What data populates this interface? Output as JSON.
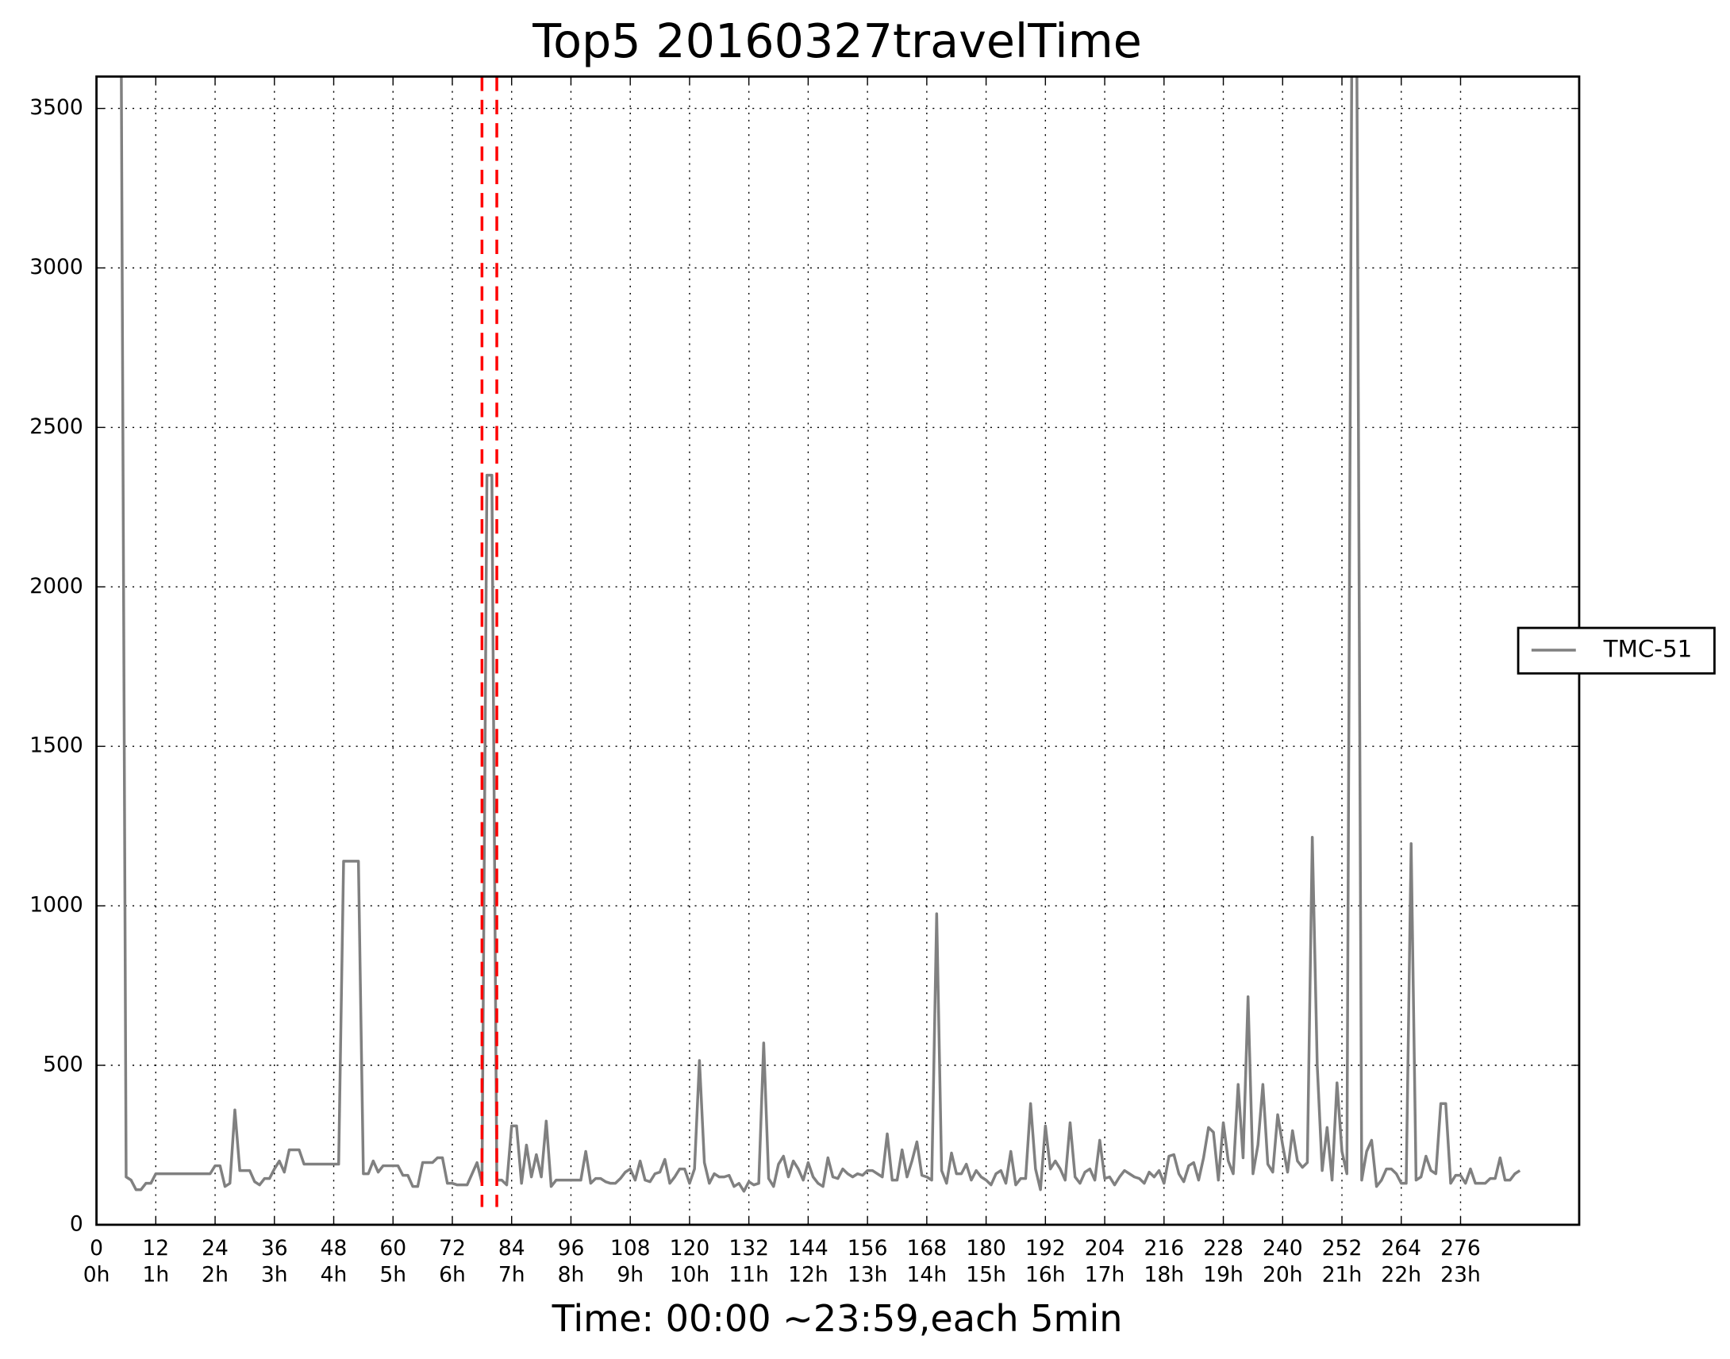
{
  "chart_data": {
    "type": "line",
    "title": "Top5 20160327travelTime",
    "x_label": "Time: 00:00 ~23:59,each 5min",
    "xlim": [
      0,
      300
    ],
    "xticks": [
      0,
      12,
      24,
      36,
      48,
      60,
      72,
      84,
      96,
      108,
      120,
      132,
      144,
      156,
      168,
      180,
      192,
      204,
      216,
      228,
      240,
      252,
      264,
      276
    ],
    "xtick_hours": [
      "0h",
      "1h",
      "2h",
      "3h",
      "4h",
      "5h",
      "6h",
      "7h",
      "8h",
      "9h",
      "10h",
      "11h",
      "12h",
      "13h",
      "14h",
      "15h",
      "16h",
      "17h",
      "18h",
      "19h",
      "20h",
      "21h",
      "22h",
      "23h"
    ],
    "ylim": [
      0,
      3600
    ],
    "yticks": [
      0,
      500,
      1000,
      1500,
      2000,
      2500,
      3000,
      3500
    ],
    "grid": true,
    "legend": "right",
    "vlines": [
      78,
      81
    ],
    "vline_color": "#ff0000",
    "series": [
      {
        "name": "TMC-51",
        "color": "#808080",
        "values": [
          3700,
          3700,
          3700,
          3700,
          3700,
          3700,
          150,
          140,
          110,
          110,
          130,
          130,
          160,
          160,
          160,
          160,
          160,
          160,
          160,
          160,
          160,
          160,
          160,
          160,
          185,
          185,
          120,
          130,
          360,
          170,
          170,
          170,
          135,
          125,
          145,
          145,
          175,
          200,
          165,
          235,
          235,
          235,
          190,
          190,
          190,
          190,
          190,
          190,
          190,
          190,
          1140,
          1140,
          1140,
          1140,
          160,
          160,
          200,
          165,
          185,
          185,
          185,
          185,
          155,
          155,
          120,
          120,
          195,
          195,
          195,
          210,
          210,
          130,
          130,
          125,
          125,
          125,
          160,
          195,
          130,
          2350,
          2350,
          140,
          140,
          125,
          310,
          310,
          130,
          250,
          150,
          220,
          150,
          325,
          120,
          140,
          140,
          140,
          140,
          140,
          140,
          230,
          130,
          145,
          145,
          135,
          130,
          130,
          145,
          165,
          175,
          140,
          200,
          140,
          135,
          160,
          165,
          205,
          130,
          150,
          175,
          175,
          130,
          175,
          515,
          195,
          130,
          160,
          150,
          150,
          155,
          120,
          130,
          105,
          135,
          125,
          130,
          570,
          145,
          120,
          190,
          215,
          150,
          200,
          175,
          140,
          195,
          150,
          130,
          120,
          210,
          150,
          145,
          175,
          160,
          150,
          160,
          155,
          170,
          170,
          160,
          150,
          285,
          140,
          140,
          235,
          150,
          200,
          260,
          155,
          150,
          140,
          975,
          170,
          130,
          225,
          160,
          160,
          190,
          140,
          170,
          150,
          140,
          125,
          160,
          170,
          130,
          230,
          125,
          145,
          145,
          380,
          175,
          110,
          310,
          175,
          200,
          175,
          140,
          320,
          150,
          130,
          165,
          175,
          140,
          265,
          145,
          150,
          125,
          150,
          170,
          160,
          150,
          145,
          130,
          165,
          150,
          170,
          130,
          215,
          220,
          160,
          135,
          185,
          195,
          140,
          210,
          305,
          290,
          140,
          320,
          200,
          160,
          440,
          210,
          715,
          160,
          250,
          440,
          190,
          165,
          345,
          250,
          165,
          295,
          200,
          180,
          195,
          1215,
          500,
          170,
          305,
          140,
          445,
          230,
          160,
          3700,
          3700,
          140,
          230,
          265,
          120,
          140,
          175,
          175,
          160,
          130,
          130,
          1195,
          140,
          150,
          215,
          170,
          160,
          380,
          380,
          130,
          155,
          155,
          130,
          175,
          130,
          130,
          130,
          145,
          145,
          210,
          140,
          140,
          160,
          170
        ]
      }
    ]
  }
}
